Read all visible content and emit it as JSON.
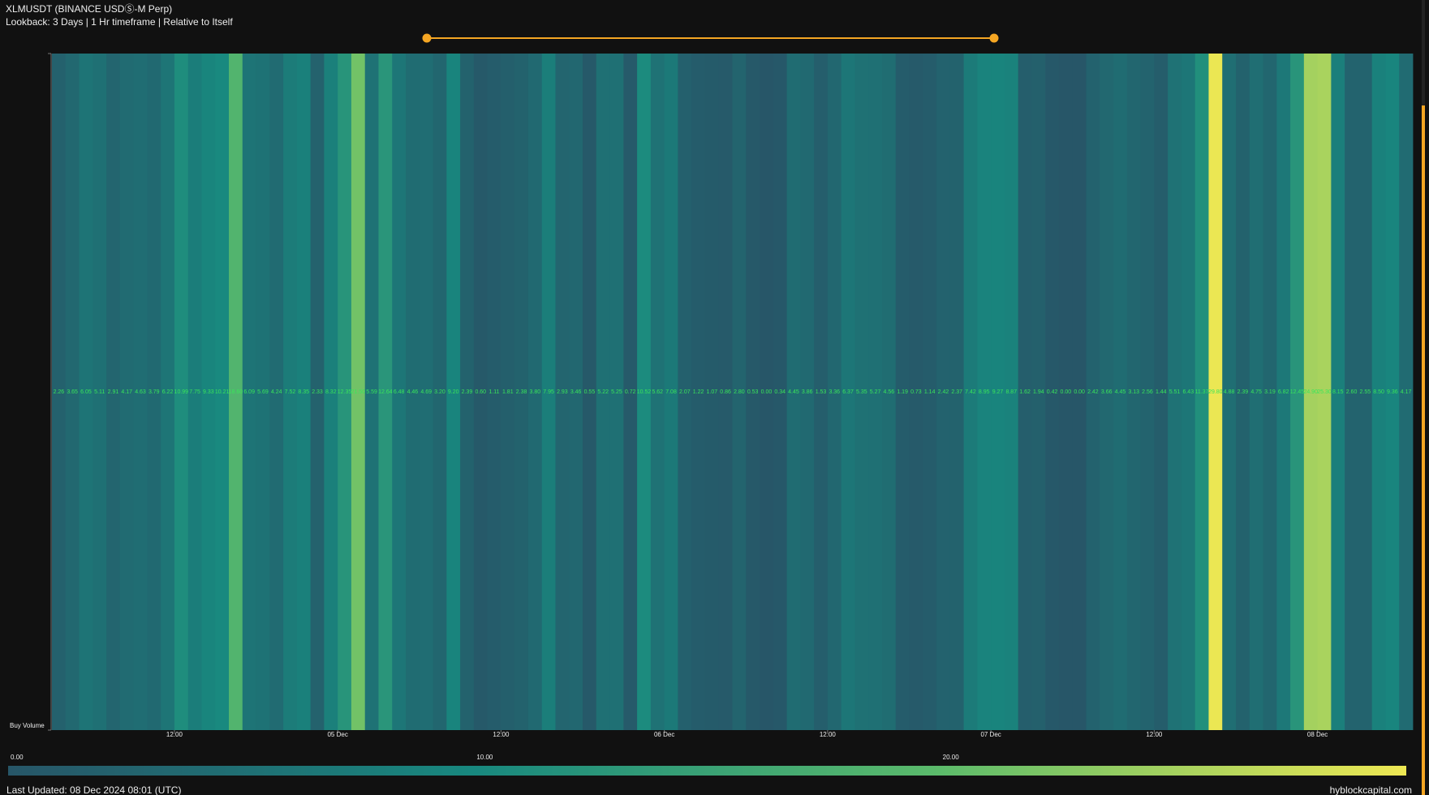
{
  "chart_data": {
    "type": "heatmap",
    "title": "XLMUSDT (BINANCE USDⓈ-M Perp)",
    "subtitle": "Lookback: 3 Days | 1 Hr timeframe | Relative to Itself",
    "ylabel": "Buy Volume",
    "values": [
      2.26,
      3.65,
      6.05,
      5.11,
      2.91,
      4.17,
      4.63,
      3.79,
      6.22,
      10.99,
      7.75,
      9.33,
      10.21,
      18.6,
      6.09,
      5.69,
      4.24,
      7.52,
      8.35,
      2.33,
      8.32,
      12.35,
      21.5,
      5.59,
      12.64,
      6.48,
      4.46,
      4.69,
      3.2,
      9.2,
      2.39,
      0.6,
      1.11,
      1.81,
      2.38,
      3.8,
      7.95,
      2.93,
      3.46,
      0.55,
      5.22,
      5.25,
      0.72,
      10.52,
      5.62,
      7.08,
      2.07,
      1.22,
      1.07,
      0.86,
      2.8,
      0.53,
      0,
      0.34,
      4.45,
      3.86,
      1.53,
      3.36,
      6.37,
      5.35,
      5.27,
      4.56,
      1.19,
      0.73,
      1.14,
      2.42,
      2.37,
      7.42,
      8.95,
      9.27,
      8.87,
      1.62,
      1.94,
      0.42,
      0,
      0,
      2.42,
      3.66,
      4.45,
      3.13,
      2.56,
      1.44,
      5.51,
      6.43,
      11.37,
      29.8,
      4.88,
      2.39,
      4.75,
      3.19,
      6.82,
      12.45,
      24.9,
      25.3,
      8.15,
      2.6,
      2.55,
      8.5,
      9.36,
      4.17
    ],
    "value_labels": [
      "2.26",
      "3.65",
      "6.05",
      "5.11",
      "2.91",
      "4.17",
      "4.63",
      "3.79",
      "6.22",
      "10.99",
      "7.75",
      "9.33",
      "10.21",
      "18.60",
      "6.09",
      "5.69",
      "4.24",
      "7.52",
      "8.35",
      "2.33",
      "8.32",
      "12.35",
      "21.50",
      "5.59",
      "12.64",
      "6.48",
      "4.46",
      "4.69",
      "3.20",
      "9.20",
      "2.39",
      "0.60",
      "1.11",
      "1.81",
      "2.38",
      "3.80",
      "7.95",
      "2.93",
      "3.46",
      "0.55",
      "5.22",
      "5.25",
      "0.72",
      "10.52",
      "5.62",
      "7.08",
      "2.07",
      "1.22",
      "1.07",
      "0.86",
      "2.80",
      "0.53",
      "0.00",
      "0.34",
      "4.45",
      "3.86",
      "1.53",
      "3.36",
      "6.37",
      "5.35",
      "5.27",
      "4.56",
      "1.19",
      "0.73",
      "1.14",
      "2.42",
      "2.37",
      "7.42",
      "8.95",
      "9.27",
      "8.87",
      "1.62",
      "1.94",
      "0.42",
      "0.00",
      "0.00",
      "2.42",
      "3.66",
      "4.45",
      "3.13",
      "2.56",
      "1.44",
      "5.51",
      "6.43",
      "11.37",
      "29.80",
      "4.88",
      "2.39",
      "4.75",
      "3.19",
      "6.82",
      "12.45",
      "24.90",
      "25.30",
      "8.15",
      "2.60",
      "2.55",
      "8.50",
      "9.36",
      "4.17"
    ],
    "xlim": [
      0,
      100
    ],
    "xticks": [
      {
        "value": 9,
        "label": "12:00"
      },
      {
        "value": 21,
        "label": "05 Dec"
      },
      {
        "value": 33,
        "label": "12:00"
      },
      {
        "value": 45,
        "label": "06 Dec"
      },
      {
        "value": 57,
        "label": "12:00"
      },
      {
        "value": 69,
        "label": "07 Dec"
      },
      {
        "value": 81,
        "label": "12:00"
      },
      {
        "value": 93,
        "label": "08 Dec"
      }
    ],
    "clim": [
      0,
      30
    ],
    "colorscale": [
      "#275668",
      "#18887f",
      "#5cbb6b",
      "#eee853"
    ],
    "cticks": [
      {
        "value": 0,
        "label": "0.00"
      },
      {
        "value": 10,
        "label": "10.00"
      },
      {
        "value": 20,
        "label": "20.00"
      }
    ],
    "footer": "Last Updated: 08 Dec 2024 08:01 (UTC)",
    "source": "hyblockcapital.com"
  }
}
